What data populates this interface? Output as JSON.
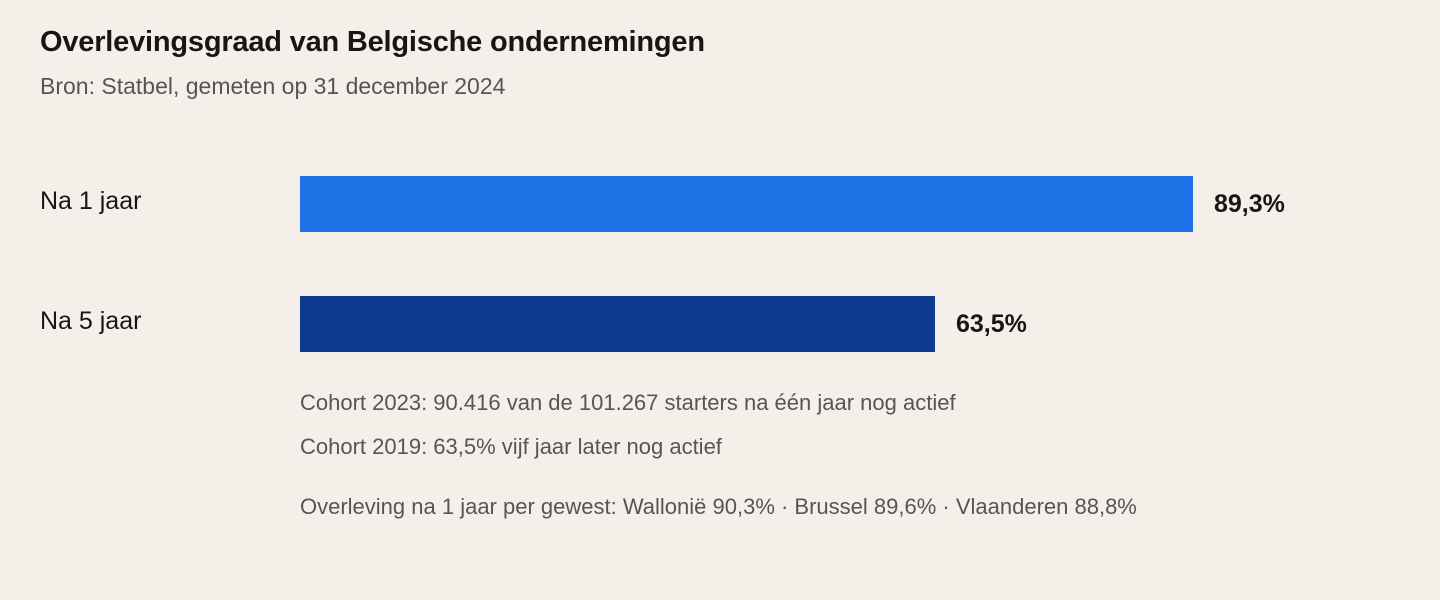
{
  "chart_data": {
    "type": "bar",
    "orientation": "horizontal",
    "title": "Overlevingsgraad van Belgische ondernemingen",
    "subtitle": "Bron: Statbel, gemeten op 31 december 2024",
    "categories": [
      "Na 1 jaar",
      "Na 5 jaar"
    ],
    "values": [
      89.3,
      63.5
    ],
    "value_labels": [
      "89,3%",
      "63,5%"
    ],
    "colors": [
      "#1e74e6",
      "#0d3b8e"
    ],
    "xlim": [
      0,
      100
    ],
    "grid": false,
    "notes": [
      "Cohort 2023: 90.416 van de 101.267 starters na één jaar nog actief",
      "Cohort 2019: 63,5% vijf jaar later nog actief",
      "Overleving na 1 jaar per gewest: Wallonië 90,3% · Brussel 89,6% · Vlaanderen 88,8%"
    ]
  }
}
